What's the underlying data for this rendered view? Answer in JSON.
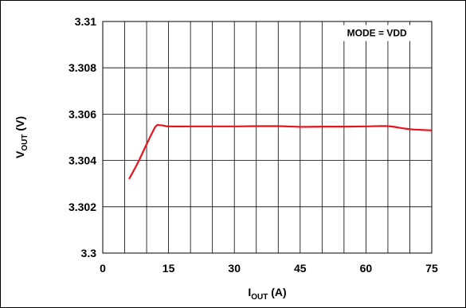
{
  "chart_data": {
    "type": "line",
    "xlabel": {
      "main": "I",
      "sub": "OUT",
      "unit": " (A)"
    },
    "ylabel": {
      "main": "V",
      "sub": "OUT",
      "unit": " (V)"
    },
    "xlim": [
      0,
      75
    ],
    "ylim": [
      3.3,
      3.31
    ],
    "x_ticks": [
      0,
      15,
      30,
      45,
      60,
      75
    ],
    "x_tick_labels": [
      "0",
      "15",
      "30",
      "45",
      "60",
      "75"
    ],
    "y_ticks": [
      3.3,
      3.302,
      3.304,
      3.306,
      3.308,
      3.31
    ],
    "y_tick_labels": [
      "3.3",
      "3.302",
      "3.304",
      "3.306",
      "3.308",
      "3.31"
    ],
    "x_grid_step": 5,
    "y_grid_step": 0.002,
    "grid": true,
    "annotation": "MODE = VDD",
    "series": [
      {
        "color": "#e8141c",
        "x": [
          6,
          8,
          10,
          12,
          13,
          14,
          15,
          20,
          25,
          30,
          35,
          40,
          45,
          50,
          55,
          60,
          65,
          70,
          75
        ],
        "y": [
          3.3032,
          3.3039,
          3.3047,
          3.30545,
          3.30552,
          3.3055,
          3.30547,
          3.30547,
          3.30547,
          3.30547,
          3.30548,
          3.30548,
          3.30545,
          3.30546,
          3.30546,
          3.30547,
          3.30548,
          3.30535,
          3.3053
        ]
      }
    ]
  }
}
